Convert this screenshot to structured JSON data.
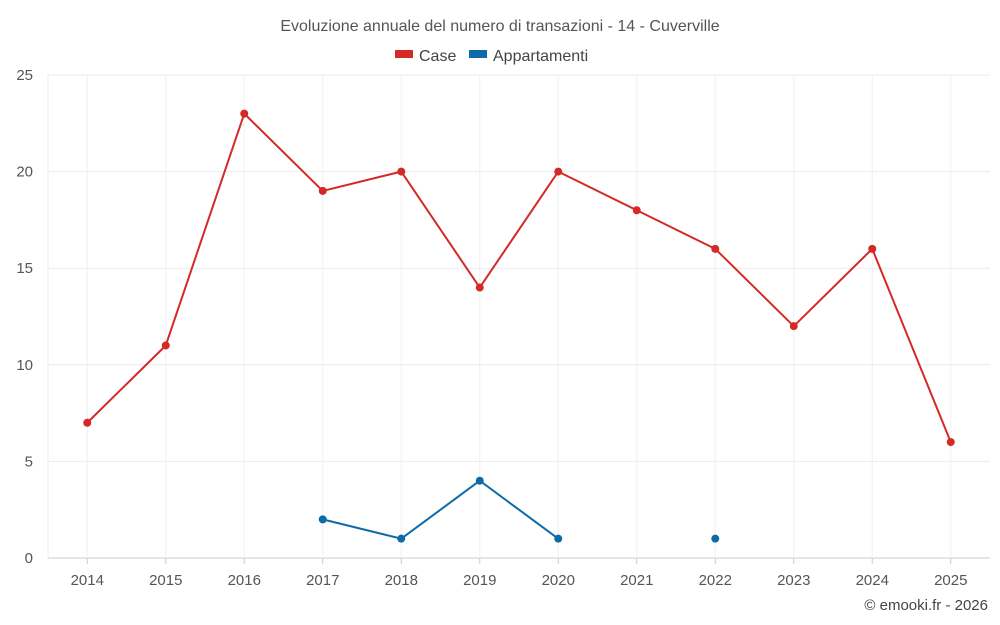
{
  "chart_data": {
    "type": "line",
    "title": "Evoluzione annuale del numero di transazioni - 14 - Cuverville",
    "categories": [
      "2014",
      "2015",
      "2016",
      "2017",
      "2018",
      "2019",
      "2020",
      "2021",
      "2022",
      "2023",
      "2024",
      "2025"
    ],
    "series": [
      {
        "name": "Case",
        "color": "#d32a27",
        "values": [
          7,
          11,
          23,
          19,
          20,
          14,
          20,
          18,
          16,
          12,
          16,
          6
        ]
      },
      {
        "name": "Appartamenti",
        "color": "#0e6aa6",
        "values": [
          null,
          null,
          null,
          2,
          1,
          4,
          1,
          null,
          1,
          null,
          null,
          null
        ]
      }
    ],
    "ylim": [
      0,
      25
    ],
    "yticks": [
      0,
      5,
      10,
      15,
      20,
      25
    ],
    "xlabel": "",
    "ylabel": "",
    "legend_position": "top-center",
    "grid": true
  },
  "credit": "© emooki.fr - 2026"
}
